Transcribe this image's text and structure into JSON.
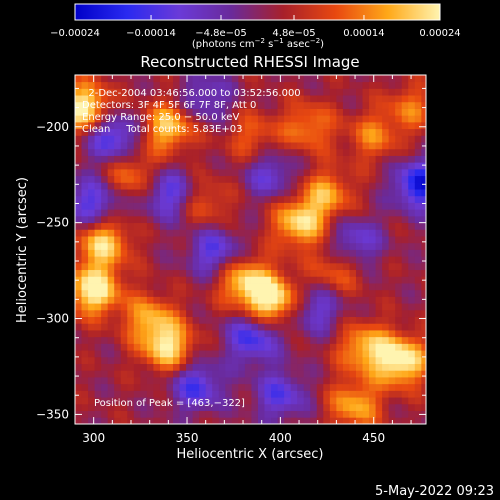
{
  "chart_data": {
    "type": "heatmap",
    "title": "Reconstructed RHESSI Image",
    "xlabel": "Heliocentric X (arcsec)",
    "ylabel": "Heliocentric Y (arcsec)",
    "xlim": [
      290,
      478
    ],
    "ylim": [
      -355,
      -173
    ],
    "x_ticks": [
      300,
      350,
      400,
      450
    ],
    "y_ticks": [
      -350,
      -300,
      -250,
      -200
    ],
    "x_tick_labels": [
      "300",
      "350",
      "400",
      "450"
    ],
    "y_tick_labels": [
      "−350",
      "−300",
      "−250",
      "−200"
    ],
    "colorbar": {
      "min": -0.00024,
      "max": 0.00024,
      "tick_values": [
        -0.00024,
        -0.00014,
        -4.8e-05,
        4.8e-05,
        0.00014,
        0.00024
      ],
      "tick_labels": [
        "−0.00024",
        "−0.00014",
        "−4.8e−05",
        "4.8e−05",
        "0.00014",
        "0.00024"
      ],
      "unit_parts": [
        "(photons cm",
        "−2",
        " s",
        "−1",
        " asec",
        "−2",
        ")"
      ],
      "colors": [
        "#0000c8",
        "#2a2af0",
        "#6a3ad8",
        "#6a2a9a",
        "#a8202a",
        "#e84810",
        "#ffa818",
        "#fff4b0"
      ]
    },
    "annotations": [
      "  2-Dec-2004 03:46:56.000 to 03:52:56.000",
      "Detectors: 3F 4F 5F 6F 7F 8F, Att 0",
      "Energy Range: 25.0 − 50.0 keV",
      "Clean     Total counts: 5.83E+03"
    ],
    "peak_label": "Position of Peak = [463,−322]",
    "peak": [
      463,
      -322
    ],
    "bright_regions": [
      {
        "x": 295,
        "y": -190,
        "value": 0.00024
      },
      {
        "x": 340,
        "y": -200,
        "value": 0.00019
      },
      {
        "x": 305,
        "y": -260,
        "value": 0.0002
      },
      {
        "x": 300,
        "y": -285,
        "value": 0.00024
      },
      {
        "x": 340,
        "y": -315,
        "value": 0.0002
      },
      {
        "x": 320,
        "y": -225,
        "value": 0.00013
      },
      {
        "x": 380,
        "y": -280,
        "value": 0.00018
      },
      {
        "x": 395,
        "y": -290,
        "value": 0.00024
      },
      {
        "x": 410,
        "y": -250,
        "value": 0.0002
      },
      {
        "x": 425,
        "y": -235,
        "value": 0.00015
      },
      {
        "x": 430,
        "y": -275,
        "value": 0.00011
      },
      {
        "x": 415,
        "y": -200,
        "value": 0.00013
      },
      {
        "x": 450,
        "y": -205,
        "value": 0.00012
      },
      {
        "x": 470,
        "y": -190,
        "value": 0.00011
      },
      {
        "x": 465,
        "y": -322,
        "value": 0.00024
      },
      {
        "x": 445,
        "y": -315,
        "value": 0.00017
      },
      {
        "x": 440,
        "y": -345,
        "value": 0.00016
      },
      {
        "x": 360,
        "y": -240,
        "value": 0.0001
      },
      {
        "x": 385,
        "y": -205,
        "value": 0.0001
      },
      {
        "x": 330,
        "y": -300,
        "value": 0.00015
      }
    ],
    "dark_regions": [
      {
        "x": 310,
        "y": -205,
        "value": -0.00018
      },
      {
        "x": 300,
        "y": -240,
        "value": -0.00016
      },
      {
        "x": 340,
        "y": -235,
        "value": -0.00015
      },
      {
        "x": 365,
        "y": -265,
        "value": -0.00015
      },
      {
        "x": 385,
        "y": -310,
        "value": -0.00017
      },
      {
        "x": 355,
        "y": -335,
        "value": -0.00016
      },
      {
        "x": 420,
        "y": -295,
        "value": -0.00012
      },
      {
        "x": 440,
        "y": -260,
        "value": -0.00013
      },
      {
        "x": 475,
        "y": -230,
        "value": -0.00022
      },
      {
        "x": 395,
        "y": -225,
        "value": -0.00012
      },
      {
        "x": 400,
        "y": -340,
        "value": -0.00014
      },
      {
        "x": 360,
        "y": -185,
        "value": -0.00011
      }
    ]
  },
  "footer": {
    "timestamp": "5-May-2022 09:23"
  }
}
